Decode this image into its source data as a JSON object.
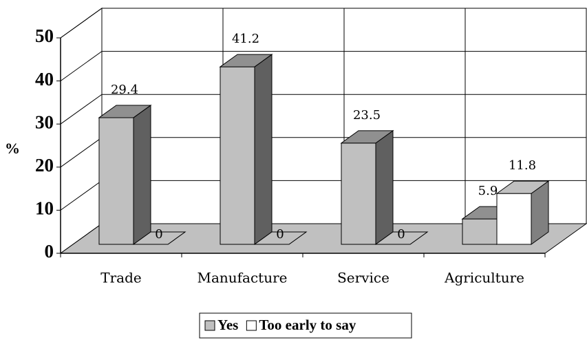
{
  "chart_data": {
    "type": "bar3d",
    "categories": [
      "Trade",
      "Manufacture",
      "Service",
      "Agriculture"
    ],
    "series": [
      {
        "name": "Yes",
        "color": "#c0c0c0",
        "values": [
          29.4,
          41.2,
          23.5,
          5.9
        ]
      },
      {
        "name": "Too early to say",
        "color": "#ffffff",
        "values": [
          0,
          0,
          0,
          11.8
        ]
      }
    ],
    "ylabel": "%",
    "ylim": [
      0,
      50
    ],
    "yticks": [
      0,
      10,
      20,
      30,
      40,
      50
    ],
    "grid": true,
    "legend": "bottom"
  }
}
